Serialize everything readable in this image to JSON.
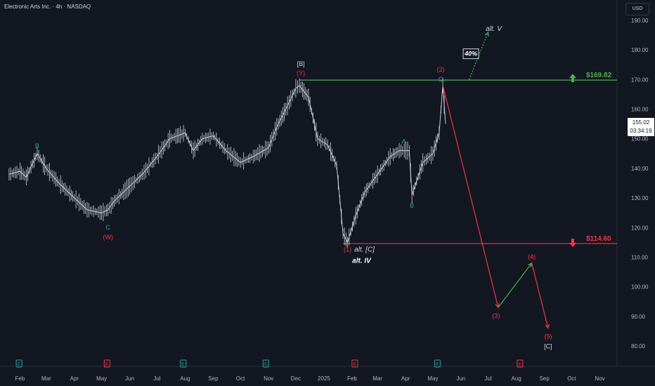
{
  "header": {
    "title": "Electronic Arts Inc. · 4h · NASDAQ",
    "currency": "USD"
  },
  "last_price": {
    "value": "155.02",
    "countdown": "03:34:19"
  },
  "chart_data": {
    "type": "line",
    "symbol": "EA",
    "ylim": [
      78,
      195
    ],
    "y_ticks": [
      80,
      90,
      100,
      110,
      120,
      130,
      140,
      150,
      160,
      170,
      180,
      190
    ],
    "x_ticks": [
      "Feb",
      "Mar",
      "Apr",
      "May",
      "Jun",
      "Jul",
      "Aug",
      "Sep",
      "Oct",
      "Nov",
      "Dec",
      "2025",
      "Feb",
      "Mar",
      "Apr",
      "May",
      "Jun",
      "Jul",
      "Aug",
      "Sep",
      "Oct",
      "Nov"
    ],
    "price_path": [
      [
        "2024-01-20",
        138
      ],
      [
        "2024-02-01",
        139
      ],
      [
        "2024-02-08",
        137
      ],
      [
        "2024-02-20",
        145
      ],
      [
        "2024-03-01",
        140
      ],
      [
        "2024-03-15",
        135
      ],
      [
        "2024-04-01",
        130
      ],
      [
        "2024-04-15",
        126
      ],
      [
        "2024-05-01",
        125
      ],
      [
        "2024-05-08",
        126
      ],
      [
        "2024-05-15",
        129
      ],
      [
        "2024-06-01",
        134
      ],
      [
        "2024-06-15",
        138
      ],
      [
        "2024-07-01",
        144
      ],
      [
        "2024-07-15",
        150
      ],
      [
        "2024-08-01",
        152
      ],
      [
        "2024-08-10",
        146
      ],
      [
        "2024-08-20",
        150
      ],
      [
        "2024-09-01",
        151
      ],
      [
        "2024-09-15",
        146
      ],
      [
        "2024-10-01",
        142
      ],
      [
        "2024-10-15",
        144
      ],
      [
        "2024-11-01",
        147
      ],
      [
        "2024-11-10",
        154
      ],
      [
        "2024-11-20",
        160
      ],
      [
        "2024-12-01",
        167
      ],
      [
        "2024-12-05",
        168
      ],
      [
        "2024-12-15",
        164
      ],
      [
        "2024-12-25",
        150
      ],
      [
        "2025-01-05",
        148
      ],
      [
        "2025-01-15",
        141
      ],
      [
        "2025-01-22",
        118
      ],
      [
        "2025-01-27",
        115
      ],
      [
        "2025-02-05",
        124
      ],
      [
        "2025-02-15",
        132
      ],
      [
        "2025-03-01",
        138
      ],
      [
        "2025-03-15",
        144
      ],
      [
        "2025-03-25",
        146
      ],
      [
        "2025-04-05",
        146
      ],
      [
        "2025-04-08",
        131
      ],
      [
        "2025-04-20",
        142
      ],
      [
        "2025-05-01",
        145
      ],
      [
        "2025-05-08",
        152
      ],
      [
        "2025-05-12",
        168
      ],
      [
        "2025-05-15",
        155
      ]
    ],
    "horizontal_levels": [
      {
        "label": "$169.82",
        "value": 169.82,
        "color": "#4caf50",
        "direction": "up"
      },
      {
        "label": "$114.60",
        "value": 114.6,
        "color": "#f23645",
        "direction": "down"
      }
    ],
    "wave_labels": [
      {
        "text": "B",
        "date": "2024-02-20",
        "price": 145,
        "color": "#26a69a"
      },
      {
        "text": "C",
        "date": "2024-05-08",
        "price": 125,
        "color": "#26a69a"
      },
      {
        "text": "(W)",
        "date": "2024-05-08",
        "price": 125,
        "color": "#f23645"
      },
      {
        "text": "[B]",
        "date": "2024-12-05",
        "price": 168,
        "color": "#d1d4dc"
      },
      {
        "text": "(Y)",
        "date": "2024-12-05",
        "price": 168,
        "color": "#f23645"
      },
      {
        "text": "(1)",
        "date": "2025-01-27",
        "price": 115,
        "color": "#f23645"
      },
      {
        "text": "alt. [C]",
        "date": "2025-01-27",
        "price": 115,
        "color": "#d1d4dc"
      },
      {
        "text": "alt. IV",
        "date": "2025-01-27",
        "price": 115,
        "color": "#ffffff"
      },
      {
        "text": "A",
        "date": "2025-03-30",
        "price": 146,
        "color": "#26a69a"
      },
      {
        "text": "B",
        "date": "2025-04-08",
        "price": 131,
        "color": "#26a69a"
      },
      {
        "text": "(2)",
        "date": "2025-05-12",
        "price": 168,
        "color": "#f23645"
      },
      {
        "text": "C",
        "date": "2025-05-12",
        "price": 168,
        "color": "#26a69a"
      },
      {
        "text": "(3)",
        "date": "2025-07-12",
        "price": 93,
        "color": "#f23645"
      },
      {
        "text": "(4)",
        "date": "2025-08-18",
        "price": 108,
        "color": "#f23645"
      },
      {
        "text": "(5)",
        "date": "2025-09-05",
        "price": 86,
        "color": "#f23645"
      },
      {
        "text": "[C]",
        "date": "2025-09-05",
        "price": 86,
        "color": "#d1d4dc"
      },
      {
        "text": "alt. V",
        "date": "2025-07-01",
        "price": 186,
        "color": "#d1d4dc"
      }
    ],
    "projection": {
      "primary": [
        [
          "2025-05-12",
          168
        ],
        [
          "2025-07-12",
          93
        ]
      ],
      "wave4": [
        [
          "2025-07-12",
          93
        ],
        [
          "2025-08-18",
          108
        ]
      ],
      "wave5": [
        [
          "2025-08-18",
          108
        ],
        [
          "2025-09-05",
          86
        ]
      ],
      "alt_v": [
        [
          "2025-06-10",
          170
        ],
        [
          "2025-07-01",
          186
        ]
      ],
      "alt_probability": "40%"
    },
    "events": [
      {
        "date": "2024-01-31",
        "type": "E",
        "color": "#26a69a"
      },
      {
        "date": "2024-05-07",
        "type": "E",
        "color": "#f23645"
      },
      {
        "date": "2024-07-30",
        "type": "E",
        "color": "#26a69a"
      },
      {
        "date": "2024-10-29",
        "type": "E",
        "color": "#26a69a"
      },
      {
        "date": "2025-02-04",
        "type": "E",
        "color": "#f23645"
      },
      {
        "date": "2025-05-06",
        "type": "E",
        "color": "#26a69a"
      },
      {
        "date": "2025-08-05",
        "type": "E",
        "color": "#f23645"
      }
    ]
  }
}
